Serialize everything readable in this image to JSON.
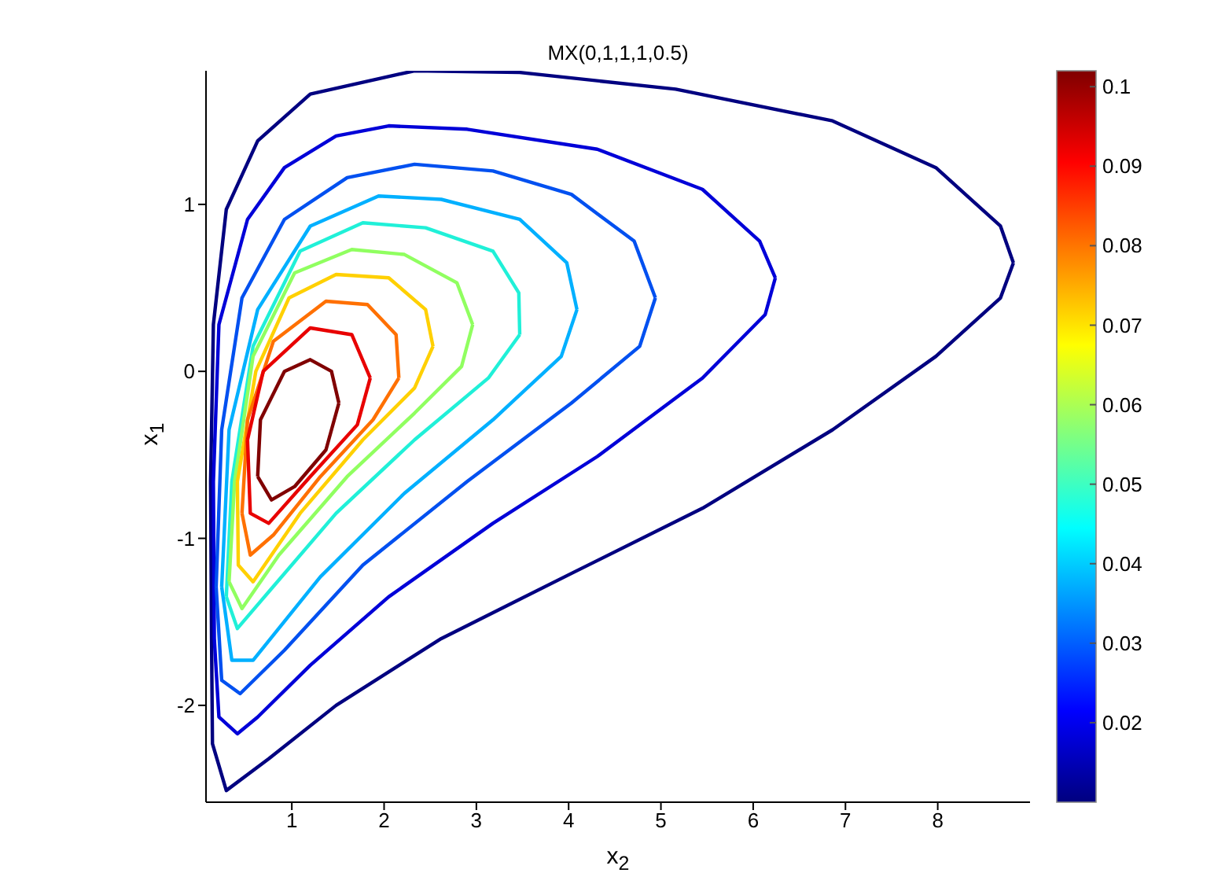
{
  "chart_data": {
    "type": "line",
    "title": "MX(0,1,1,1,0.5)",
    "xlabel": "x$_{2}$",
    "ylabel": "x$_{1}$",
    "xlim": [
      0.07,
      9.0
    ],
    "ylim": [
      -2.58,
      1.8
    ],
    "xticks": [
      1,
      2,
      3,
      4,
      5,
      6,
      7,
      8
    ],
    "yticks": [
      -2,
      -1,
      0,
      1
    ],
    "clim": [
      0.01,
      0.102
    ],
    "cticks": [
      0.02,
      0.03,
      0.04,
      0.05,
      0.06,
      0.07,
      0.08,
      0.09,
      0.1
    ],
    "series": [
      {
        "color": "#000080",
        "x": [
          0.12,
          0.13,
          0.14,
          0.29,
          0.75,
          1.48,
          2.62,
          4.03,
          5.45,
          6.86,
          7.98,
          8.68,
          8.82,
          null,
          0.12,
          0.15,
          0.29,
          0.63,
          1.2,
          2.33,
          3.47,
          5.16,
          6.86,
          7.98,
          8.68,
          8.82
        ],
        "values": [
          -0.66,
          -1.6,
          -2.23,
          -2.51,
          -2.32,
          -2.0,
          -1.6,
          -1.21,
          -0.82,
          -0.35,
          0.09,
          0.44,
          0.65,
          null,
          -0.66,
          0.28,
          0.97,
          1.38,
          1.66,
          1.8,
          1.79,
          1.69,
          1.5,
          1.22,
          0.87,
          0.65
        ]
      },
      {
        "color": "#0000d8",
        "x": [
          0.15,
          0.16,
          0.21,
          0.41,
          0.63,
          1.2,
          2.05,
          3.18,
          4.31,
          5.45,
          6.13,
          6.24,
          null,
          0.15,
          0.21,
          0.52,
          0.92,
          1.48,
          2.05,
          2.9,
          4.31,
          5.45,
          6.07,
          6.24
        ],
        "values": [
          -0.66,
          -1.6,
          -2.07,
          -2.17,
          -2.07,
          -1.76,
          -1.35,
          -0.91,
          -0.51,
          -0.04,
          0.34,
          0.56,
          null,
          -0.66,
          0.28,
          0.91,
          1.22,
          1.41,
          1.47,
          1.45,
          1.33,
          1.09,
          0.78,
          0.56
        ]
      },
      {
        "color": "#0050f0",
        "x": [
          0.18,
          0.24,
          0.44,
          0.92,
          1.77,
          2.9,
          4.03,
          4.77,
          4.94,
          null,
          0.18,
          0.24,
          0.46,
          0.92,
          1.6,
          2.33,
          3.18,
          4.03,
          4.71,
          4.94
        ],
        "values": [
          -1.29,
          -1.85,
          -1.93,
          -1.67,
          -1.16,
          -0.66,
          -0.19,
          0.15,
          0.44,
          null,
          -1.29,
          -0.35,
          0.44,
          0.91,
          1.16,
          1.24,
          1.2,
          1.06,
          0.78,
          0.44
        ]
      },
      {
        "color": "#00b0ff",
        "x": [
          0.24,
          0.35,
          0.58,
          1.31,
          2.22,
          3.18,
          3.92,
          4.09,
          null,
          0.24,
          0.32,
          0.63,
          1.2,
          1.94,
          2.62,
          3.47,
          3.98,
          4.09
        ],
        "values": [
          -1.29,
          -1.73,
          -1.73,
          -1.23,
          -0.73,
          -0.29,
          0.09,
          0.37,
          null,
          -1.29,
          -0.35,
          0.37,
          0.87,
          1.05,
          1.03,
          0.91,
          0.65,
          0.37
        ]
      },
      {
        "color": "#20f0d8",
        "x": [
          0.29,
          0.41,
          0.75,
          1.48,
          2.33,
          3.13,
          3.47,
          null,
          0.29,
          0.35,
          0.58,
          1.09,
          1.77,
          2.45,
          3.18,
          3.46,
          3.47
        ],
        "values": [
          -1.35,
          -1.54,
          -1.32,
          -0.85,
          -0.41,
          -0.04,
          0.22,
          null,
          -1.35,
          -0.66,
          0.15,
          0.72,
          0.89,
          0.86,
          0.72,
          0.47,
          0.22
        ]
      },
      {
        "color": "#90ff60",
        "x": [
          0.32,
          0.46,
          0.86,
          1.6,
          2.33,
          2.84,
          2.96,
          null,
          0.32,
          0.38,
          0.58,
          1.03,
          1.65,
          2.22,
          2.79,
          2.96
        ],
        "values": [
          -1.26,
          -1.42,
          -1.1,
          -0.63,
          -0.25,
          0.03,
          0.28,
          null,
          -1.26,
          -0.66,
          0.09,
          0.59,
          0.73,
          0.7,
          0.53,
          0.28
        ]
      },
      {
        "color": "#ffd000",
        "x": [
          0.41,
          0.42,
          0.58,
          1.09,
          1.77,
          2.33,
          2.53,
          null,
          0.41,
          0.61,
          0.97,
          1.48,
          2.05,
          2.45,
          2.53
        ],
        "values": [
          -0.66,
          -1.16,
          -1.26,
          -0.85,
          -0.41,
          -0.1,
          0.15,
          null,
          -0.66,
          0.0,
          0.44,
          0.58,
          0.56,
          0.37,
          0.15
        ]
      },
      {
        "color": "#ff7000",
        "x": [
          0.46,
          0.55,
          0.8,
          1.31,
          1.88,
          2.16,
          null,
          0.46,
          0.52,
          0.8,
          1.37,
          1.82,
          2.13,
          2.16
        ],
        "values": [
          -0.85,
          -1.1,
          -0.98,
          -0.63,
          -0.29,
          -0.04,
          null,
          -0.85,
          -0.29,
          0.18,
          0.42,
          0.4,
          0.22,
          -0.04
        ]
      },
      {
        "color": "#e80000",
        "x": [
          0.52,
          0.55,
          0.75,
          1.2,
          1.71,
          1.85,
          null,
          0.52,
          0.69,
          1.2,
          1.65,
          1.85
        ],
        "values": [
          -0.41,
          -0.85,
          -0.91,
          -0.63,
          -0.32,
          -0.04,
          null,
          -0.41,
          0.0,
          0.26,
          0.22,
          -0.04
        ]
      },
      {
        "color": "#800000",
        "x": [
          0.63,
          0.78,
          1.03,
          1.37,
          1.51,
          null,
          0.63,
          0.66,
          0.92,
          1.2,
          1.43,
          1.51
        ],
        "values": [
          -0.63,
          -0.77,
          -0.69,
          -0.47,
          -0.19,
          null,
          -0.63,
          -0.29,
          0.0,
          0.07,
          0.0,
          -0.19
        ]
      }
    ]
  }
}
